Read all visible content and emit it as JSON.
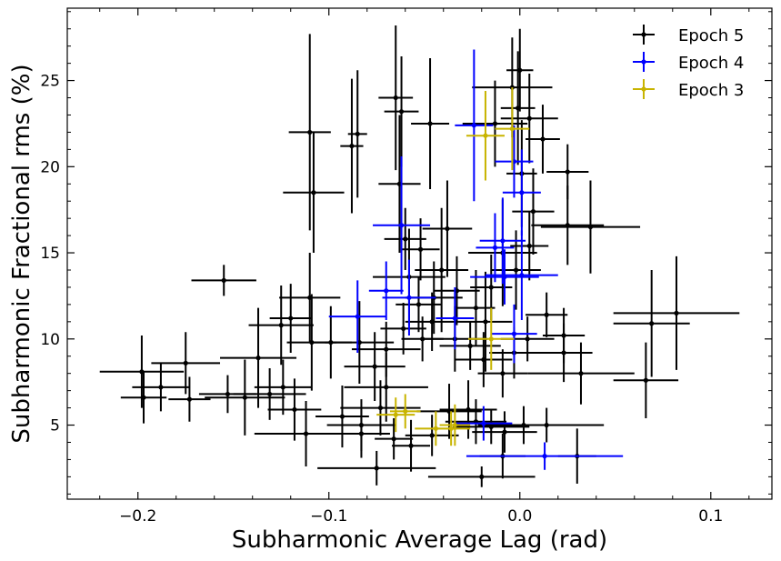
{
  "chart_data": {
    "type": "scatter",
    "title": "",
    "xlabel": "Subharmonic Average Lag (rad)",
    "ylabel": "Subharmonic Fractional rms (%)",
    "xlim": [
      -0.237,
      0.132
    ],
    "ylim": [
      0.7,
      29.2
    ],
    "x_ticks": [
      -0.2,
      -0.1,
      0.0,
      0.1
    ],
    "x_tick_labels": [
      "−0.2",
      "−0.1",
      "0.0",
      "0.1"
    ],
    "y_ticks": [
      5,
      10,
      15,
      20,
      25
    ],
    "y_tick_labels": [
      "5",
      "10",
      "15",
      "20",
      "25"
    ],
    "legend_position": "top-right",
    "series": [
      {
        "name": "Epoch 5",
        "color": "#000000",
        "points": [
          [
            -0.155,
            13.4,
            0.017,
            0.9
          ],
          [
            -0.11,
            22.0,
            0.011,
            5.7
          ],
          [
            -0.108,
            18.5,
            0.016,
            3.5
          ],
          [
            -0.088,
            21.2,
            0.006,
            3.9
          ],
          [
            -0.085,
            21.9,
            0.005,
            3.7
          ],
          [
            -0.065,
            24.0,
            0.009,
            4.2
          ],
          [
            -0.062,
            23.2,
            0.009,
            3.2
          ],
          [
            -0.047,
            22.5,
            0.01,
            3.8
          ],
          [
            -0.063,
            19.0,
            0.011,
            4.0
          ],
          [
            -0.06,
            15.8,
            0.011,
            1.8
          ],
          [
            -0.038,
            16.4,
            0.013,
            2.8
          ],
          [
            -0.041,
            14.0,
            0.014,
            3.6
          ],
          [
            -0.052,
            15.2,
            0.01,
            1.8
          ],
          [
            -0.058,
            13.6,
            0.019,
            2.8
          ],
          [
            -0.045,
            12.4,
            0.015,
            2.1
          ],
          [
            -0.053,
            12.0,
            0.012,
            1.6
          ],
          [
            -0.033,
            12.8,
            0.012,
            2.0
          ],
          [
            -0.023,
            11.8,
            0.01,
            2.2
          ],
          [
            -0.018,
            11.0,
            0.014,
            2.9
          ],
          [
            -0.015,
            13.0,
            0.011,
            1.9
          ],
          [
            -0.009,
            15.0,
            0.018,
            3.1
          ],
          [
            -0.002,
            14.0,
            0.013,
            2.3
          ],
          [
            0.005,
            15.4,
            0.01,
            2.0
          ],
          [
            0.007,
            17.4,
            0.011,
            2.5
          ],
          [
            0.001,
            19.6,
            0.008,
            3.1
          ],
          [
            0.012,
            21.6,
            0.009,
            2.0
          ],
          [
            0.005,
            22.8,
            0.015,
            2.6
          ],
          [
            -0.013,
            22.5,
            0.017,
            2.5
          ],
          [
            -0.004,
            24.6,
            0.021,
            2.9
          ],
          [
            0.0,
            25.6,
            0.007,
            2.4
          ],
          [
            -0.001,
            23.4,
            0.009,
            3.3
          ],
          [
            0.025,
            19.7,
            0.011,
            1.6
          ],
          [
            0.025,
            16.6,
            0.019,
            2.3
          ],
          [
            0.037,
            16.5,
            0.026,
            2.7
          ],
          [
            -0.125,
            10.8,
            0.017,
            2.3
          ],
          [
            -0.12,
            11.2,
            0.011,
            2.0
          ],
          [
            -0.11,
            12.4,
            0.016,
            2.6
          ],
          [
            -0.109,
            9.8,
            0.013,
            2.8
          ],
          [
            -0.099,
            9.8,
            0.011,
            2.1
          ],
          [
            -0.084,
            9.8,
            0.018,
            2.4
          ],
          [
            -0.076,
            8.4,
            0.016,
            2.0
          ],
          [
            -0.07,
            9.4,
            0.018,
            1.6
          ],
          [
            -0.07,
            7.2,
            0.022,
            2.0
          ],
          [
            -0.061,
            10.6,
            0.012,
            1.5
          ],
          [
            -0.051,
            10.0,
            0.011,
            1.3
          ],
          [
            -0.046,
            11.0,
            0.014,
            1.7
          ],
          [
            -0.034,
            10.0,
            0.017,
            1.9
          ],
          [
            -0.026,
            9.6,
            0.016,
            1.4
          ],
          [
            -0.019,
            8.8,
            0.015,
            1.6
          ],
          [
            -0.009,
            8.0,
            0.013,
            1.4
          ],
          [
            -0.003,
            9.2,
            0.013,
            1.5
          ],
          [
            0.004,
            10.0,
            0.014,
            1.3
          ],
          [
            0.014,
            11.4,
            0.011,
            1.3
          ],
          [
            0.023,
            10.2,
            0.011,
            1.6
          ],
          [
            0.023,
            9.2,
            0.015,
            1.7
          ],
          [
            0.032,
            8.0,
            0.028,
            1.8
          ],
          [
            0.066,
            7.6,
            0.017,
            2.2
          ],
          [
            0.069,
            10.9,
            0.02,
            3.1
          ],
          [
            0.082,
            11.5,
            0.033,
            3.3
          ],
          [
            -0.198,
            8.1,
            0.022,
            2.1
          ],
          [
            -0.197,
            6.6,
            0.012,
            1.5
          ],
          [
            -0.188,
            7.2,
            0.015,
            1.4
          ],
          [
            -0.175,
            8.6,
            0.018,
            1.8
          ],
          [
            -0.173,
            6.5,
            0.011,
            1.3
          ],
          [
            -0.153,
            6.8,
            0.015,
            1.1
          ],
          [
            -0.144,
            6.6,
            0.021,
            2.2
          ],
          [
            -0.137,
            8.9,
            0.02,
            2.9
          ],
          [
            -0.131,
            6.8,
            0.019,
            1.5
          ],
          [
            -0.124,
            7.2,
            0.015,
            1.6
          ],
          [
            -0.118,
            5.9,
            0.014,
            1.8
          ],
          [
            -0.112,
            4.5,
            0.027,
            1.9
          ],
          [
            -0.093,
            5.5,
            0.014,
            1.8
          ],
          [
            -0.083,
            5.0,
            0.018,
            1.5
          ],
          [
            -0.083,
            4.5,
            0.015,
            1.4
          ],
          [
            -0.073,
            6.0,
            0.021,
            1.6
          ],
          [
            -0.066,
            4.2,
            0.01,
            1.2
          ],
          [
            -0.057,
            3.8,
            0.01,
            1.5
          ],
          [
            -0.046,
            4.4,
            0.014,
            1.2
          ],
          [
            -0.037,
            5.8,
            0.017,
            1.6
          ],
          [
            -0.027,
            5.9,
            0.015,
            1.7
          ],
          [
            -0.023,
            5.2,
            0.016,
            1.3
          ],
          [
            -0.015,
            4.9,
            0.02,
            1.0
          ],
          [
            -0.008,
            4.6,
            0.017,
            1.2
          ],
          [
            0.002,
            5.0,
            0.024,
            1.1
          ],
          [
            0.014,
            5.0,
            0.03,
            1.0
          ],
          [
            0.03,
            3.2,
            0.01,
            1.6
          ],
          [
            -0.075,
            2.5,
            0.031,
            1.0
          ],
          [
            -0.02,
            2.0,
            0.028,
            0.6
          ],
          [
            -0.009,
            3.2,
            0.012,
            1.3
          ]
        ]
      },
      {
        "name": "Epoch 4",
        "color": "#0000ff",
        "points": [
          [
            -0.085,
            11.3,
            0.015,
            2.1
          ],
          [
            -0.062,
            16.6,
            0.015,
            4.0
          ],
          [
            -0.07,
            12.8,
            0.009,
            1.7
          ],
          [
            -0.058,
            12.4,
            0.014,
            2.2
          ],
          [
            -0.024,
            22.4,
            0.01,
            4.4
          ],
          [
            -0.003,
            20.3,
            0.01,
            2.1
          ],
          [
            0.001,
            18.5,
            0.01,
            2.5
          ],
          [
            -0.009,
            15.7,
            0.012,
            2.5
          ],
          [
            -0.013,
            15.3,
            0.01,
            2.0
          ],
          [
            -0.008,
            13.6,
            0.018,
            1.6
          ],
          [
            0.001,
            13.7,
            0.019,
            2.6
          ],
          [
            -0.034,
            11.2,
            0.01,
            1.8
          ],
          [
            -0.003,
            10.3,
            0.012,
            1.7
          ],
          [
            -0.019,
            5.1,
            0.015,
            1.0
          ],
          [
            0.013,
            3.2,
            0.041,
            0.8
          ]
        ]
      },
      {
        "name": "Epoch 3",
        "color": "#c8b400",
        "points": [
          [
            -0.018,
            21.8,
            0.01,
            2.6
          ],
          [
            -0.004,
            22.2,
            0.009,
            2.4
          ],
          [
            -0.015,
            10.0,
            0.012,
            1.8
          ],
          [
            -0.065,
            5.6,
            0.01,
            1.0
          ],
          [
            -0.06,
            5.8,
            0.008,
            1.0
          ],
          [
            -0.044,
            4.8,
            0.011,
            1.0
          ],
          [
            -0.036,
            4.8,
            0.01,
            1.0
          ],
          [
            -0.034,
            5.0,
            0.008,
            1.2
          ]
        ]
      }
    ]
  }
}
